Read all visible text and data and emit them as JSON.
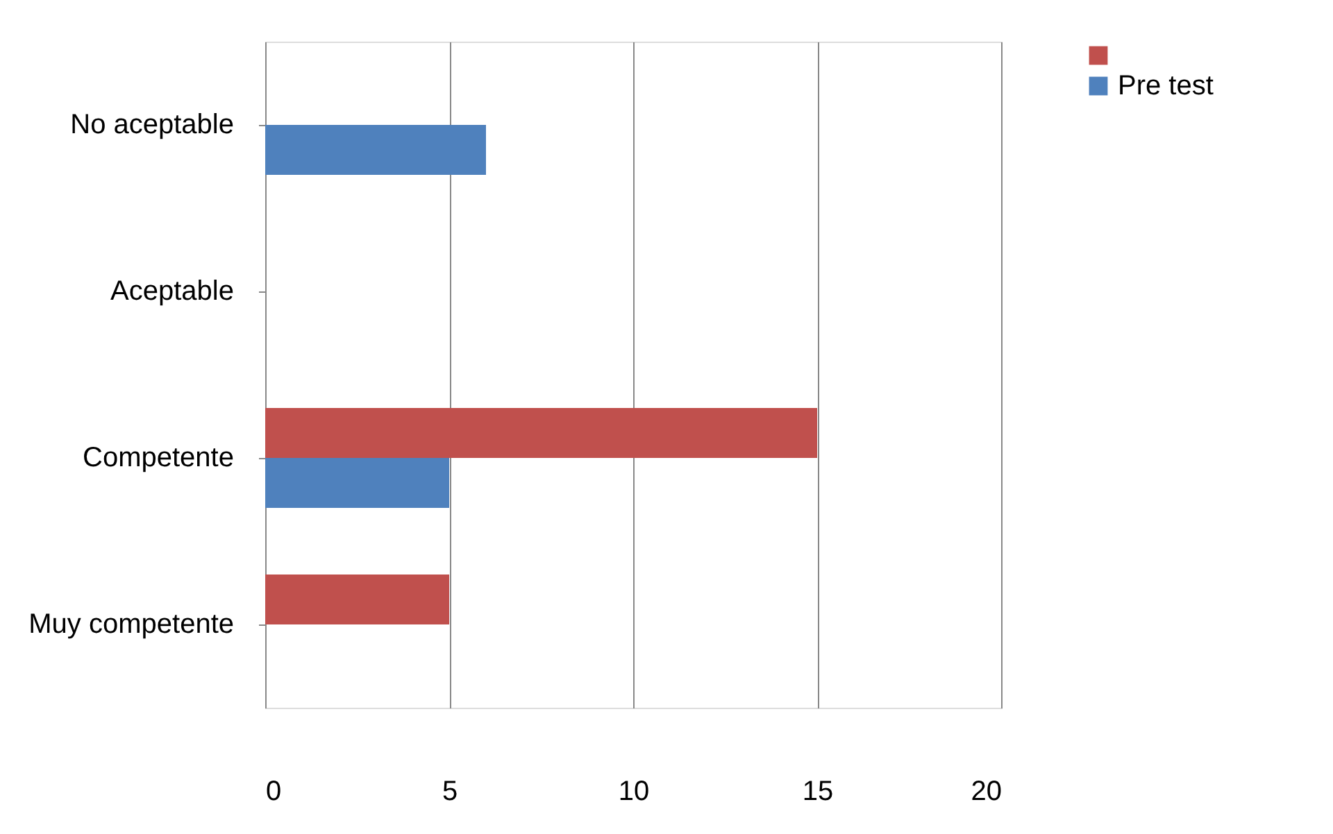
{
  "chart_data": {
    "type": "bar",
    "orientation": "horizontal",
    "categories": [
      "No aceptable",
      "Aceptable",
      "Competente",
      "Muy competente"
    ],
    "series": [
      {
        "color": "#c0504d",
        "values": [
          0,
          0,
          15,
          5
        ]
      },
      {
        "name": "Pre test",
        "color": "#4f81bd",
        "values": [
          6,
          0,
          5,
          0
        ]
      }
    ],
    "xlim": [
      0,
      20
    ],
    "xticks": [
      0,
      5,
      10,
      15,
      20
    ],
    "grid": "x",
    "legend": "right"
  }
}
